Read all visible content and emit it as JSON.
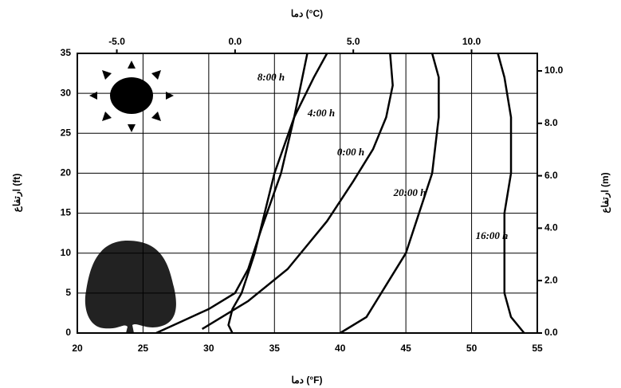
{
  "chart_data": {
    "type": "line",
    "x_label": "دما (°F)",
    "x2_label": "دما (°C)",
    "y_label": "ارتفاع (ft)",
    "y2_label": "ارتفاع (m)",
    "xlim": [
      20,
      55
    ],
    "xticks": [
      20,
      25,
      30,
      35,
      40,
      45,
      50,
      55
    ],
    "ylim": [
      0,
      35
    ],
    "yticks": [
      0,
      5,
      10,
      15,
      20,
      25,
      30,
      35
    ],
    "x2lim": [
      -6.67,
      12.78
    ],
    "x2ticks": [
      {
        "value": -5,
        "label": "-5.0"
      },
      {
        "value": 0,
        "label": "0.0"
      },
      {
        "value": 5,
        "label": "5.0"
      },
      {
        "value": 10,
        "label": "10.0"
      }
    ],
    "y2lim": [
      0,
      10.668
    ],
    "y2ticks": [
      {
        "value": 0,
        "label": "0.0"
      },
      {
        "value": 2,
        "label": "2.0"
      },
      {
        "value": 4,
        "label": "4.0"
      },
      {
        "value": 6,
        "label": "6.0"
      },
      {
        "value": 8,
        "label": "8.0"
      },
      {
        "value": 10,
        "label": "10.0"
      }
    ],
    "grid": true,
    "series": [
      {
        "name": "8:00 h",
        "color": "#000000",
        "x": [
          31.8,
          31.5,
          31.8,
          32.5,
          33.5,
          35,
          36.5,
          38,
          39
        ],
        "values": [
          0,
          1,
          3,
          5,
          10,
          20,
          27,
          32,
          35
        ]
      },
      {
        "name": "4:00 h",
        "color": "#000000",
        "x": [
          26,
          28,
          30,
          32,
          33,
          34,
          35.5,
          36.5,
          37.5
        ],
        "values": [
          0,
          1.5,
          3,
          5,
          8,
          13,
          20,
          27,
          35
        ]
      },
      {
        "name": "0:00 h",
        "color": "#000000",
        "x": [
          29.5,
          33,
          36,
          39,
          41,
          42.5,
          43.5,
          44,
          43.8
        ],
        "values": [
          0.5,
          4,
          8,
          14,
          19,
          23,
          27,
          31,
          35
        ]
      },
      {
        "name": "20:00 h",
        "color": "#000000",
        "x": [
          40,
          42,
          43.5,
          45,
          46,
          47,
          47.5,
          47.5,
          47
        ],
        "values": [
          0,
          2,
          6,
          10,
          15,
          20,
          27,
          32,
          35
        ]
      },
      {
        "name": "16:00 h",
        "color": "#000000",
        "x": [
          54,
          53,
          52.5,
          52.5,
          52.5,
          53,
          53,
          52.5,
          52
        ],
        "values": [
          0,
          2,
          5,
          10,
          15,
          20,
          27,
          32,
          35
        ]
      }
    ]
  }
}
